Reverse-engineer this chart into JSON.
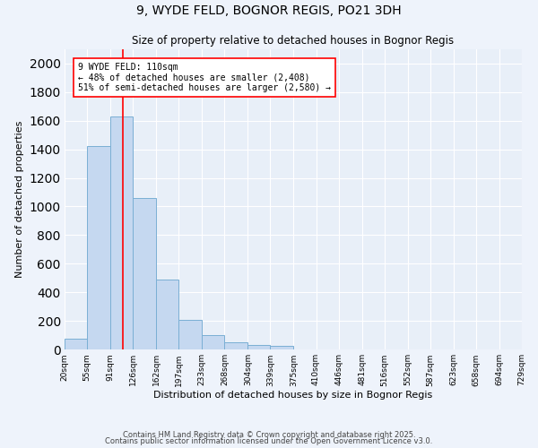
{
  "title": "9, WYDE FELD, BOGNOR REGIS, PO21 3DH",
  "subtitle": "Size of property relative to detached houses in Bognor Regis",
  "xlabel": "Distribution of detached houses by size in Bognor Regis",
  "ylabel": "Number of detached properties",
  "bar_color": "#C5D8F0",
  "bar_edge_color": "#7AAFD4",
  "background_color": "#E8EFF8",
  "grid_color": "#FFFFFF",
  "bin_edges": [
    20,
    55,
    91,
    126,
    162,
    197,
    233,
    268,
    304,
    339,
    375,
    410,
    446,
    481,
    516,
    552,
    587,
    623,
    658,
    694,
    729
  ],
  "bin_labels": [
    "20sqm",
    "55sqm",
    "91sqm",
    "126sqm",
    "162sqm",
    "197sqm",
    "233sqm",
    "268sqm",
    "304sqm",
    "339sqm",
    "375sqm",
    "410sqm",
    "446sqm",
    "481sqm",
    "516sqm",
    "552sqm",
    "587sqm",
    "623sqm",
    "658sqm",
    "694sqm",
    "729sqm"
  ],
  "counts": [
    75,
    1420,
    1630,
    1060,
    490,
    210,
    100,
    50,
    30,
    25,
    0,
    0,
    0,
    0,
    0,
    0,
    0,
    0,
    0,
    0
  ],
  "red_line_x": 110,
  "annotation_title": "9 WYDE FELD: 110sqm",
  "annotation_line1": "← 48% of detached houses are smaller (2,408)",
  "annotation_line2": "51% of semi-detached houses are larger (2,580) →",
  "ylim": [
    0,
    2100
  ],
  "yticks": [
    0,
    200,
    400,
    600,
    800,
    1000,
    1200,
    1400,
    1600,
    1800,
    2000
  ],
  "footnote1": "Contains HM Land Registry data © Crown copyright and database right 2025.",
  "footnote2": "Contains public sector information licensed under the Open Government Licence v3.0."
}
